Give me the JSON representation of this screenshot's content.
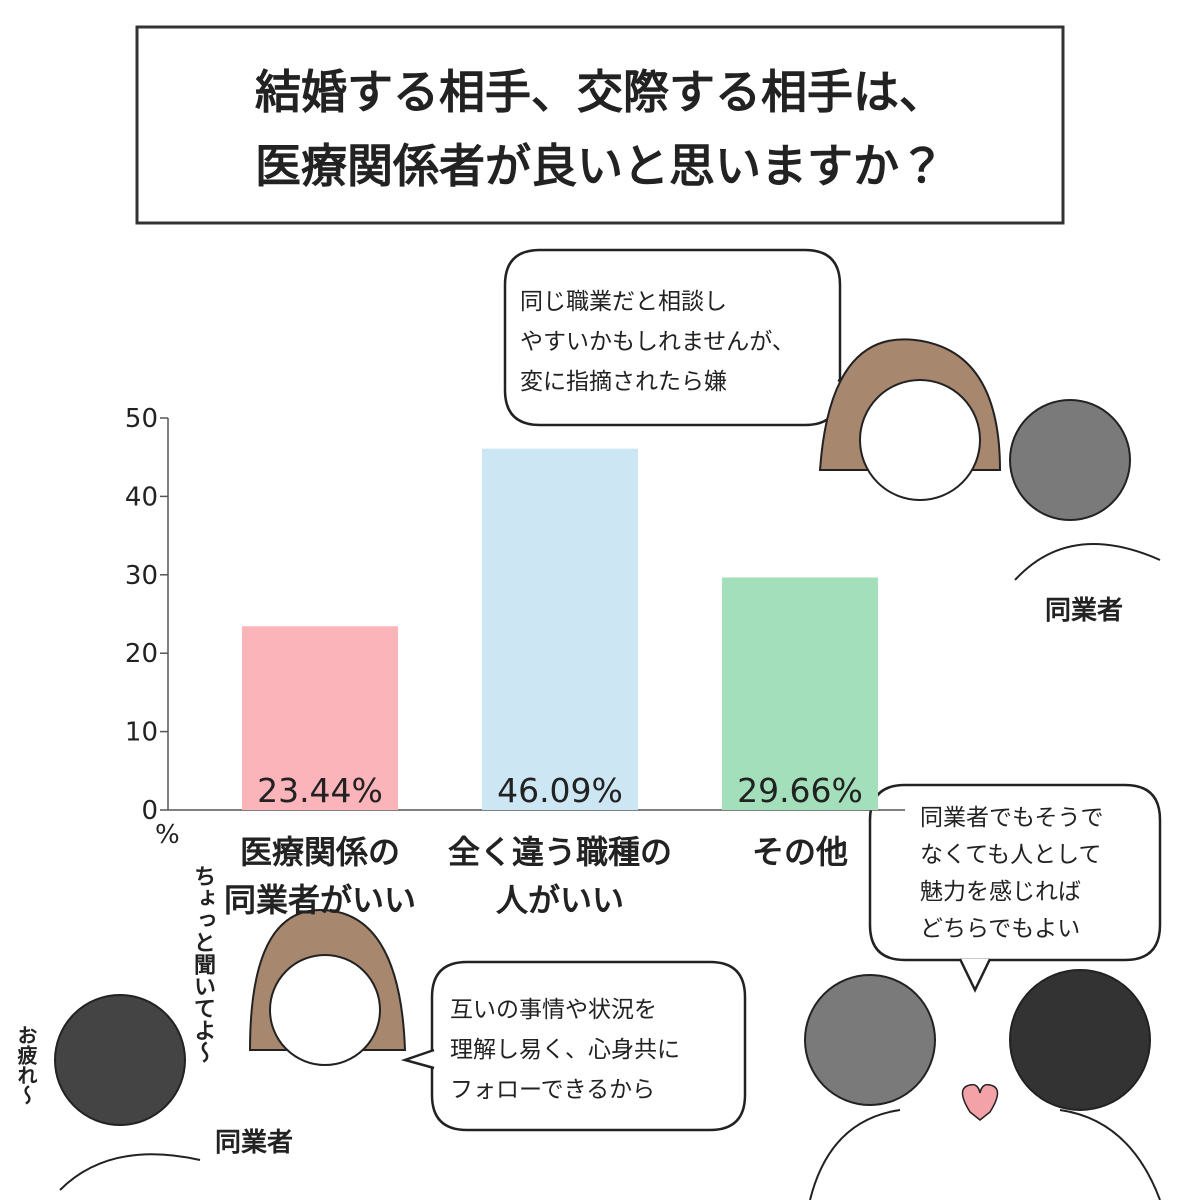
{
  "chart_data": {
    "type": "bar",
    "title": "結婚する相手、交際する相手は、\n医療関係者が良いと思いますか？",
    "categories": [
      "医療関係の\n同業者がいい",
      "全く違う職種の\n人がいい",
      "その他"
    ],
    "values": [
      23.44,
      46.09,
      29.66
    ],
    "value_labels": [
      "23.44%",
      "46.09%",
      "29.66%"
    ],
    "colors": [
      "#fbb4b9",
      "#cde6f3",
      "#a3dfbb"
    ],
    "ylim": [
      0,
      50
    ],
    "yticks": [
      0,
      10,
      20,
      30,
      40,
      50
    ],
    "y_unit": "%",
    "speech_bubbles": [
      "同じ職業だと相談し\nやすいかもしれませんが、\n変に指摘されたら嫌",
      "同業者でもそうで\nなくても人として\n魅力を感じれば\nどちらでもよい",
      "互いの事情や状況を\n理解し易く、心身共に\nフォローできるから"
    ],
    "captions": [
      "同業者",
      "同業者",
      "ちょっと聞いてよ〜",
      "お疲れ〜"
    ]
  }
}
